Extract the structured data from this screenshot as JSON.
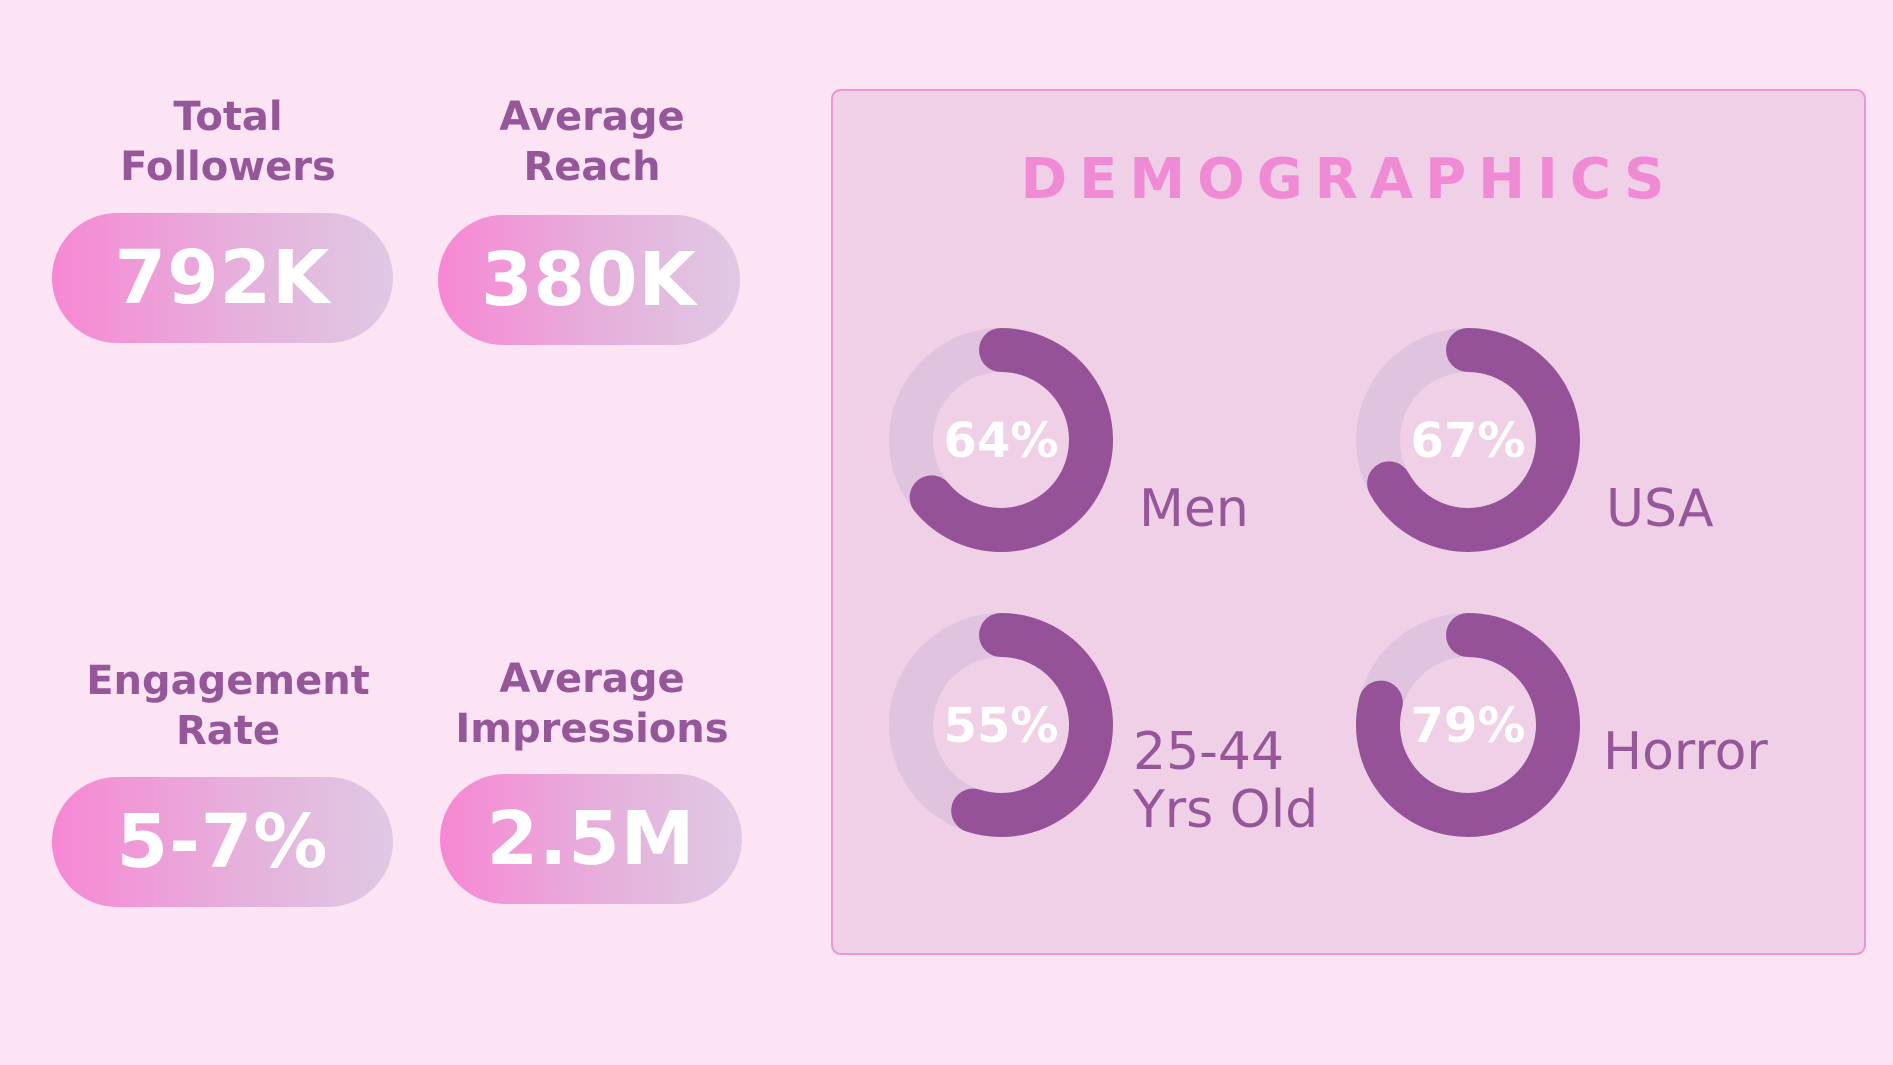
{
  "stats": [
    {
      "label_lines": [
        "Total",
        "Followers"
      ],
      "value": "792K"
    },
    {
      "label_lines": [
        "Average",
        "Reach"
      ],
      "value": "380K"
    },
    {
      "label_lines": [
        "Engagement",
        "Rate"
      ],
      "value": "5-7%"
    },
    {
      "label_lines": [
        "Average",
        "Impressions"
      ],
      "value": "2.5M"
    }
  ],
  "demographics": {
    "title": "DEMOGRAPHICS"
  },
  "colors": {
    "background": "#fce4f4",
    "label": "#96569a",
    "title": "#f08ad4",
    "ring_fill": "#965299",
    "ring_track": "#e0c3de",
    "ring_hole": "#efd0e7"
  },
  "chart_data": {
    "type": "pie",
    "title": "DEMOGRAPHICS",
    "categories": [
      "Men",
      "USA",
      "25-44 Yrs Old",
      "Horror"
    ],
    "series": [
      {
        "values": [
          64,
          67,
          55,
          79
        ]
      }
    ],
    "items": [
      {
        "value": 64,
        "value_label": "64%",
        "label_lines": [
          "Men"
        ]
      },
      {
        "value": 67,
        "value_label": "67%",
        "label_lines": [
          "USA"
        ]
      },
      {
        "value": 55,
        "value_label": "55%",
        "label_lines": [
          "25-44",
          "Yrs Old"
        ]
      },
      {
        "value": 79,
        "value_label": "79%",
        "label_lines": [
          "Horror"
        ]
      }
    ],
    "unit": "%",
    "ylim": [
      0,
      100
    ]
  }
}
